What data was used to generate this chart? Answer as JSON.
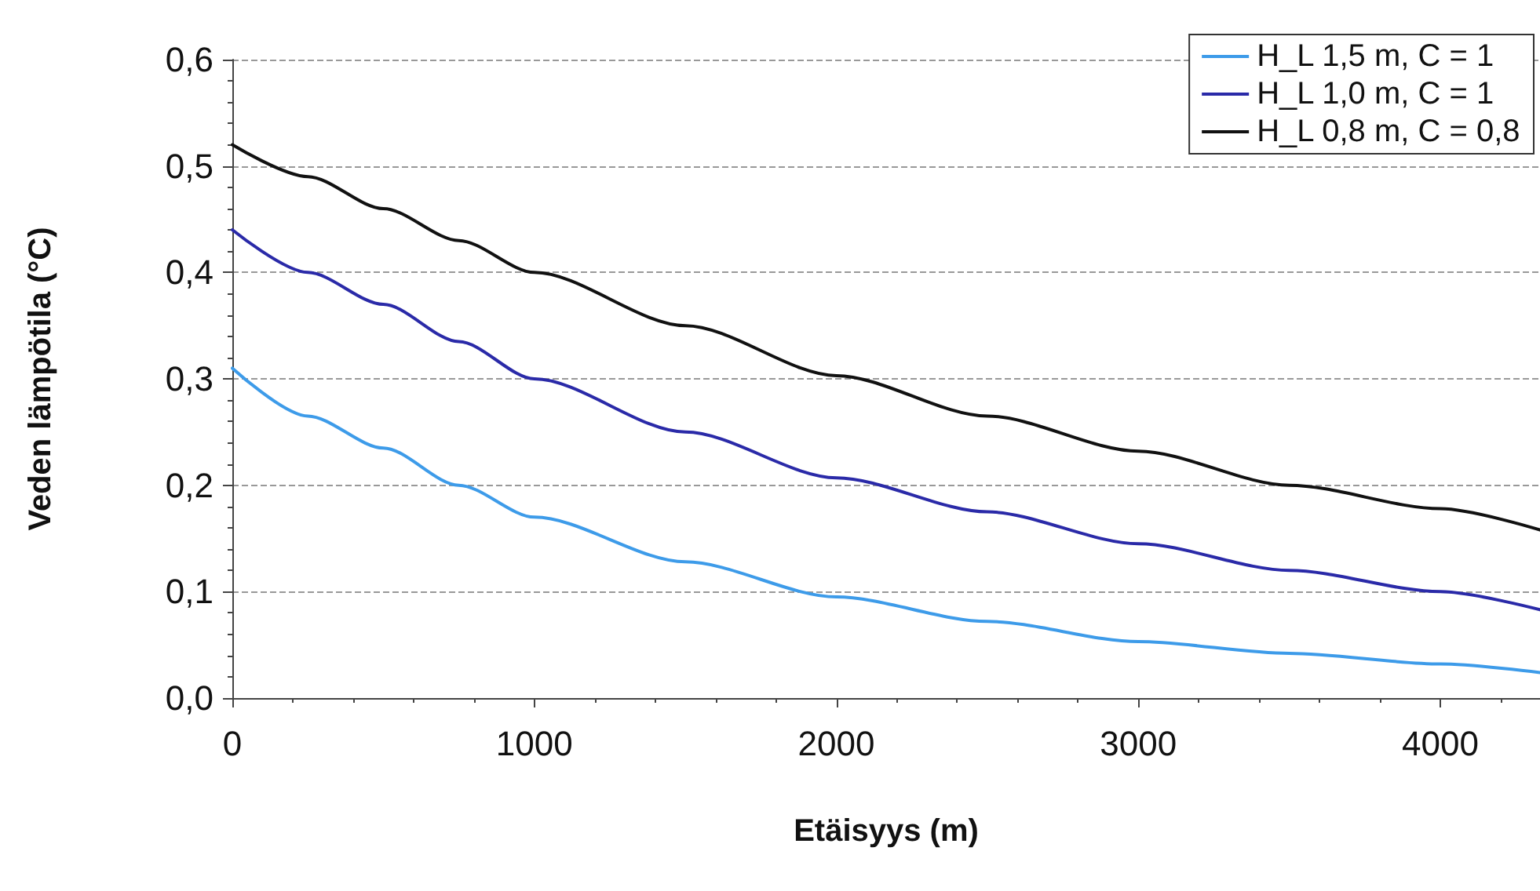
{
  "chart_data": {
    "type": "line",
    "xlabel": "Etäisyys (m)",
    "ylabel": "Veden lämpötila (°C)",
    "xlim": [
      0,
      4330
    ],
    "xticks": [
      0,
      1000,
      2000,
      3000,
      4000
    ],
    "ylim": [
      0,
      0.6
    ],
    "yticks": [
      {
        "value": 0,
        "label": "0,0"
      },
      {
        "value": 0.1,
        "label": "0,1"
      },
      {
        "value": 0.2,
        "label": "0,2"
      },
      {
        "value": 0.3,
        "label": "0,3"
      },
      {
        "value": 0.4,
        "label": "0,4"
      },
      {
        "value": 0.5,
        "label": "0,5"
      },
      {
        "value": 0.6,
        "label": "0,6"
      }
    ],
    "grid": "y",
    "legend": "top right",
    "marker": "none",
    "line_style": "solid",
    "series": [
      {
        "name": "H_L 1,5 m, C = 1",
        "color": "#3d9be9",
        "x": [
          0,
          250,
          500,
          750,
          1000,
          1500,
          2000,
          2500,
          3000,
          3500,
          4000,
          4330
        ],
        "values": [
          0.31,
          0.265,
          0.235,
          0.2,
          0.17,
          0.128,
          0.095,
          0.072,
          0.053,
          0.042,
          0.032,
          0.024
        ]
      },
      {
        "name": "H_L 1,0 m, C = 1",
        "color": "#2a2aa8",
        "x": [
          0,
          250,
          500,
          750,
          1000,
          1500,
          2000,
          2500,
          3000,
          3500,
          4000,
          4330
        ],
        "values": [
          0.44,
          0.4,
          0.37,
          0.335,
          0.3,
          0.25,
          0.207,
          0.175,
          0.145,
          0.12,
          0.1,
          0.083
        ]
      },
      {
        "name": "H_L 0,8 m, C = 0,8",
        "color": "#111111",
        "x": [
          0,
          250,
          500,
          750,
          1000,
          1500,
          2000,
          2500,
          3000,
          3500,
          4000,
          4330
        ],
        "values": [
          0.52,
          0.49,
          0.46,
          0.43,
          0.4,
          0.35,
          0.303,
          0.265,
          0.232,
          0.2,
          0.178,
          0.158
        ]
      }
    ]
  }
}
